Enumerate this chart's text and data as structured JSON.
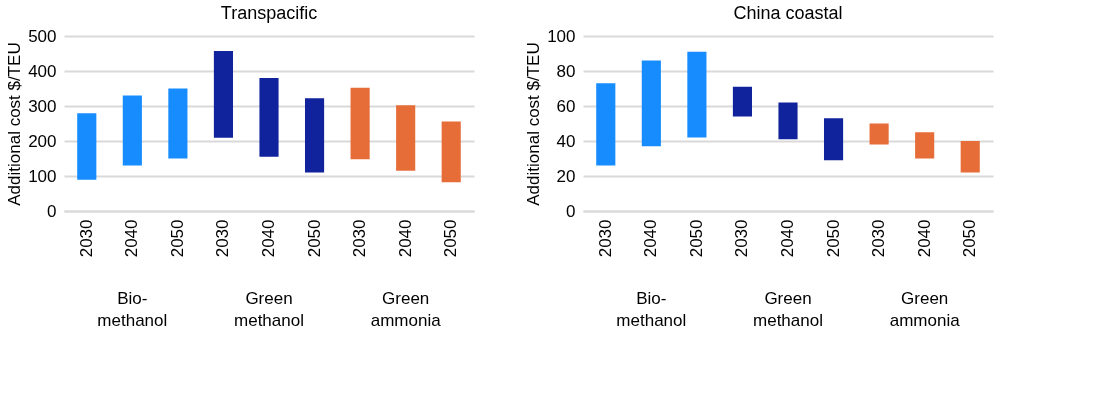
{
  "chart_data": [
    {
      "type": "bar",
      "title": "Transpacific",
      "ylabel": "Additional cost $/TEU",
      "categories": [
        "2030",
        "2040",
        "2050",
        "2030",
        "2040",
        "2050",
        "2030",
        "2040",
        "2050"
      ],
      "base": [
        89,
        130,
        150,
        209,
        155,
        110,
        148,
        115,
        82
      ],
      "values": [
        190,
        200,
        200,
        248,
        225,
        212,
        204,
        187,
        174
      ],
      "colors": [
        "#168cff",
        "#168cff",
        "#168cff",
        "#11239c",
        "#11239c",
        "#11239c",
        "#e66d38",
        "#e66d38",
        "#e66d38"
      ],
      "ylim": [
        0,
        500
      ],
      "yticks": [
        0,
        100,
        200,
        300,
        400,
        500
      ],
      "grid": "y",
      "annotations": [
        "Bio-\nmethanol",
        "Green\nmethanol",
        "Green\nammonia"
      ]
    },
    {
      "type": "bar",
      "title": "China coastal",
      "ylabel": "Additional cost $/TEU",
      "categories": [
        "2030",
        "2040",
        "2050",
        "2030",
        "2040",
        "2050",
        "2030",
        "2040",
        "2050"
      ],
      "base": [
        26,
        37,
        42,
        54,
        41,
        29,
        38,
        30,
        22
      ],
      "values": [
        47,
        49,
        49,
        17,
        21,
        24,
        12,
        15,
        18
      ],
      "colors": [
        "#168cff",
        "#168cff",
        "#168cff",
        "#11239c",
        "#11239c",
        "#11239c",
        "#e66d38",
        "#e66d38",
        "#e66d38"
      ],
      "ylim": [
        0,
        100
      ],
      "yticks": [
        0,
        20,
        40,
        60,
        80,
        100
      ],
      "grid": "y",
      "annotations": [
        "Bio-\nmethanol",
        "Green\nmethanol",
        "Green\nammonia"
      ]
    }
  ]
}
